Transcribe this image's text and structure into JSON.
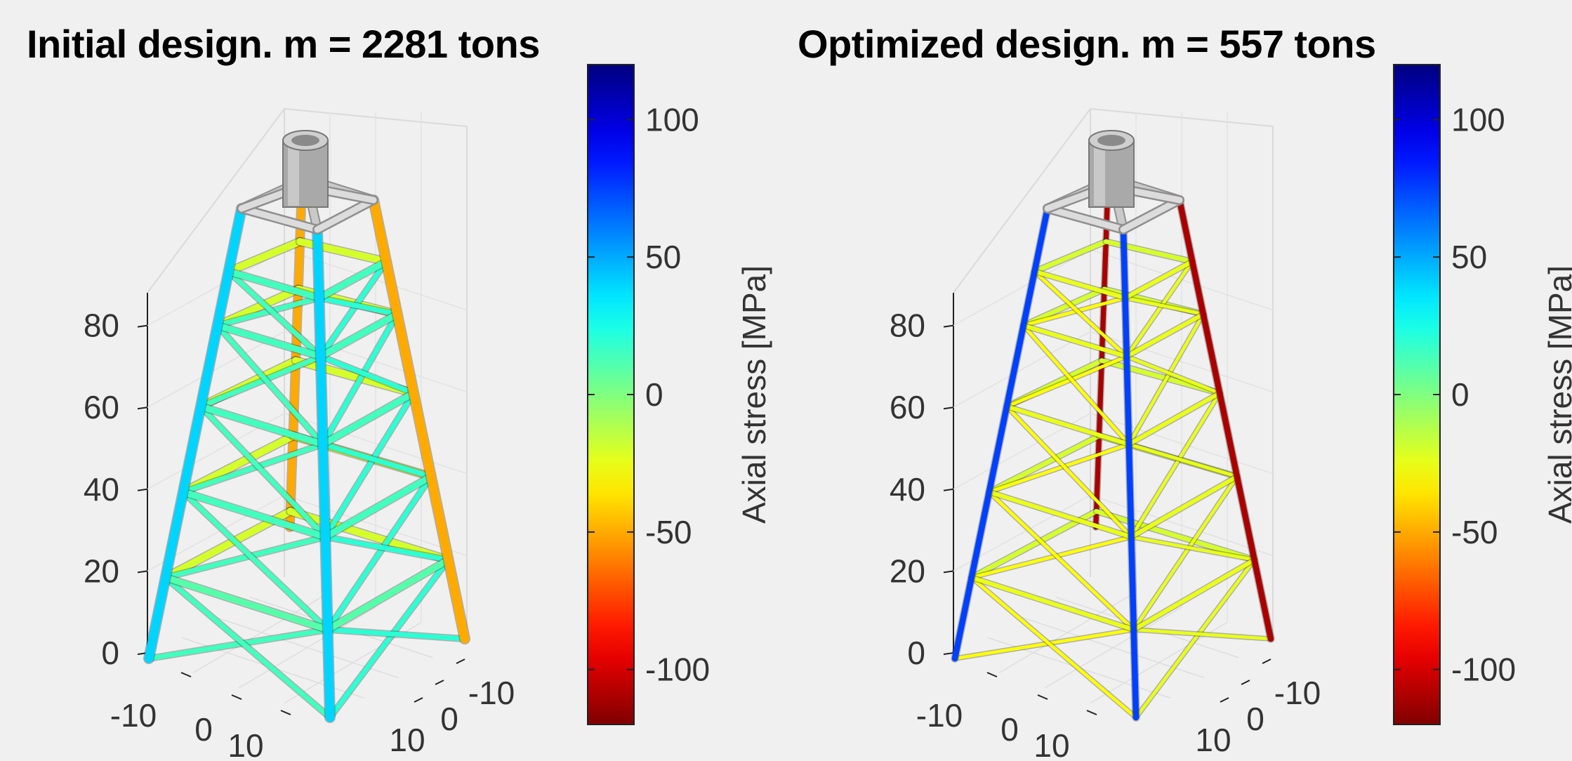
{
  "chart_data": [
    {
      "type": "3d-truss",
      "title": "Initial design. m = 2281 tons",
      "zlim": [
        0,
        88
      ],
      "z_ticks": [
        "0",
        "20",
        "40",
        "60",
        "80"
      ],
      "x_ticks": [
        "-10",
        "0",
        "10"
      ],
      "y_ticks": [
        "-10",
        "0",
        "10"
      ],
      "grid": true,
      "colorbar": {
        "label": "Axial stress [MPa]",
        "range": [
          -120,
          120
        ],
        "ticks": [
          "100",
          "50",
          "0",
          "-50",
          "-100"
        ],
        "tick_values": [
          100,
          50,
          0,
          -50,
          -100
        ]
      },
      "members": {
        "legs": [
          {
            "corner": "left",
            "stress": 40
          },
          {
            "corner": "front",
            "stress": 40
          },
          {
            "corner": "right",
            "stress": -50
          },
          {
            "corner": "back",
            "stress": -50
          }
        ],
        "horizontal_braces_front": [
          10,
          10,
          15,
          15,
          15,
          15
        ],
        "horizontal_braces_back": [
          -20,
          -20,
          -20,
          -20,
          -20,
          -20
        ],
        "x_braces_left": [
          15,
          15,
          15,
          15,
          15
        ],
        "x_braces_right": [
          20,
          20,
          20,
          20,
          20
        ]
      }
    },
    {
      "type": "3d-truss",
      "title": "Optimized design. m = 557 tons",
      "zlim": [
        0,
        88
      ],
      "z_ticks": [
        "0",
        "20",
        "40",
        "60",
        "80"
      ],
      "x_ticks": [
        "-10",
        "0",
        "10"
      ],
      "y_ticks": [
        "-10",
        "0",
        "10"
      ],
      "grid": true,
      "colorbar": {
        "label": "Axial stress [MPa]",
        "range": [
          -120,
          120
        ],
        "ticks": [
          "100",
          "50",
          "0",
          "-50",
          "-100"
        ],
        "tick_values": [
          100,
          50,
          0,
          -50,
          -100
        ]
      },
      "members": {
        "legs": [
          {
            "corner": "left",
            "stress": 75
          },
          {
            "corner": "front",
            "stress": 75
          },
          {
            "corner": "right",
            "stress": -110
          },
          {
            "corner": "back",
            "stress": -110
          }
        ],
        "horizontal_braces_front": [
          -25,
          -25,
          -25,
          -25,
          -25,
          -25
        ],
        "horizontal_braces_back": [
          -20,
          -20,
          -20,
          -20,
          -20,
          -20
        ],
        "x_braces_left": [
          -30,
          -30,
          -30,
          -30,
          -30
        ],
        "x_braces_right": [
          -25,
          -25,
          -25,
          -25,
          -25
        ]
      }
    }
  ]
}
